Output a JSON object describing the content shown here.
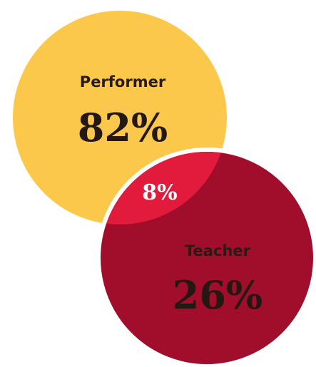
{
  "sets": [
    {
      "label": "Performer",
      "value": "82%"
    },
    {
      "label": "Teacher",
      "value": "26%"
    }
  ],
  "overlap": {
    "value": "8%"
  }
}
